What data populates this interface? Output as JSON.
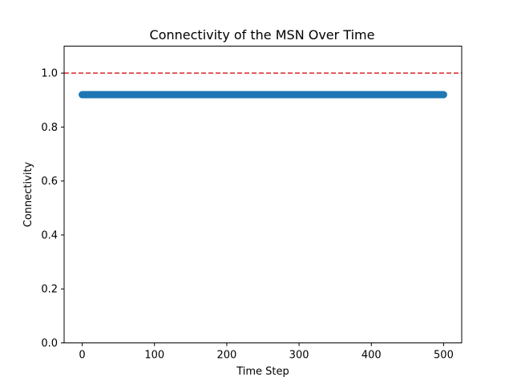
{
  "chart_data": {
    "type": "scatter",
    "title": "Connectivity of the MSN Over Time",
    "xlabel": "Time Step",
    "ylabel": "Connectivity",
    "xlim": [
      -25,
      525
    ],
    "ylim": [
      0,
      1.1
    ],
    "xticks": [
      0,
      100,
      200,
      300,
      400,
      500
    ],
    "xtick_labels": [
      "0",
      "100",
      "200",
      "300",
      "400",
      "500"
    ],
    "yticks": [
      0.0,
      0.2,
      0.4,
      0.6,
      0.8,
      1.0
    ],
    "ytick_labels": [
      "0.0",
      "0.2",
      "0.4",
      "0.6",
      "0.8",
      "1.0"
    ],
    "series": [
      {
        "x_start": 0,
        "x_end": 500,
        "x_step": 1,
        "y_constant": 0.92,
        "color": "#1f77b4",
        "marker": "circle"
      }
    ],
    "reference_line": {
      "y": 1.0,
      "color": "#d62728",
      "style": "dashed"
    },
    "grid": false,
    "legend": "none"
  }
}
